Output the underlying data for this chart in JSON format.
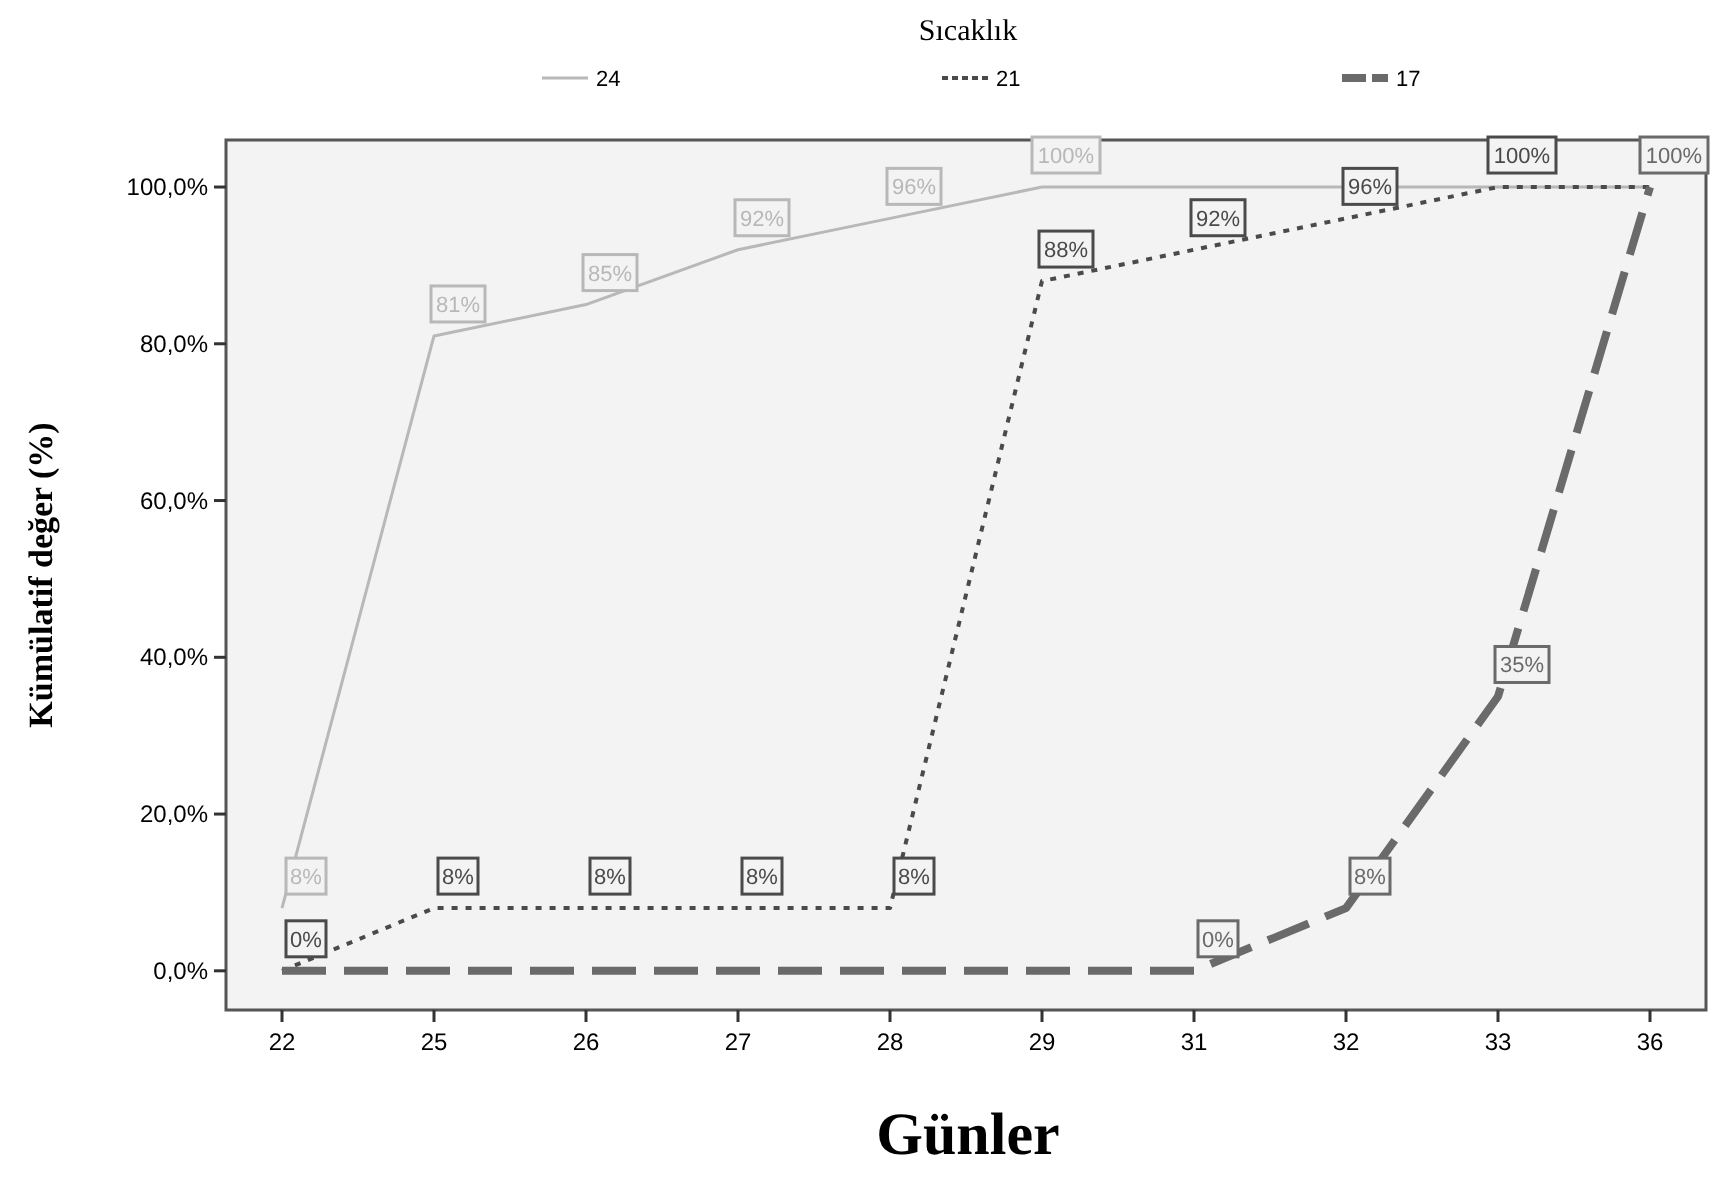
{
  "chart_data": {
    "type": "line",
    "xlabel": "Günler",
    "ylabel": "Kümülatif değer (%)",
    "legend_title": "Sıcaklık",
    "legend": "top",
    "categories": [
      "22",
      "25",
      "26",
      "27",
      "28",
      "29",
      "31",
      "32",
      "33",
      "36"
    ],
    "ylim": [
      -5,
      106
    ],
    "yticks": [
      {
        "value": 0,
        "label": "0,0%"
      },
      {
        "value": 20,
        "label": "20,0%"
      },
      {
        "value": 40,
        "label": "40,0%"
      },
      {
        "value": 60,
        "label": "60,0%"
      },
      {
        "value": 80,
        "label": "80,0%"
      },
      {
        "value": 100,
        "label": "100,0%"
      }
    ],
    "grid": false,
    "marker": "none",
    "series": [
      {
        "name": "24",
        "color": "#b8b8b8",
        "line_style": "solid",
        "values": [
          8,
          81,
          85,
          92,
          96,
          100,
          100,
          100,
          100,
          100
        ],
        "value_labels": [
          "8%",
          "81%",
          "85%",
          "92%",
          "96%",
          "100%",
          null,
          null,
          null,
          null
        ]
      },
      {
        "name": "21",
        "color": "#4a4a4a",
        "line_style": "dotted",
        "values": [
          0,
          8,
          8,
          8,
          8,
          88,
          92,
          96,
          100,
          100
        ],
        "value_labels": [
          "0%",
          "8%",
          "8%",
          "8%",
          "8%",
          "88%",
          "92%",
          "96%",
          "100%",
          null
        ]
      },
      {
        "name": "17",
        "color": "#6a6a6a",
        "line_style": "dashed",
        "values": [
          0,
          0,
          0,
          0,
          0,
          0,
          0,
          8,
          35,
          100
        ],
        "value_labels": [
          null,
          null,
          null,
          null,
          null,
          null,
          "0%",
          "8%",
          "35%",
          "100%"
        ]
      }
    ]
  }
}
